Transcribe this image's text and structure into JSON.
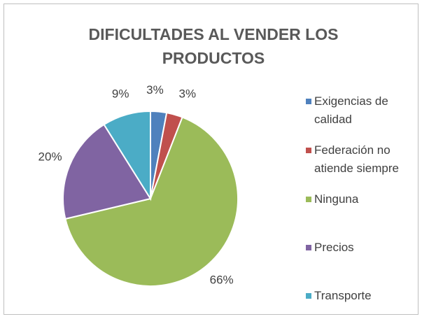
{
  "chart_data": {
    "type": "pie",
    "title": "DIFICULTADES AL VENDER LOS PRODUCTOS",
    "categories": [
      "Exigencias de calidad",
      "Federación no atiende siempre",
      "Ninguna",
      "Precios",
      "Transporte"
    ],
    "values": [
      3,
      3,
      66,
      20,
      9
    ],
    "value_labels": [
      "3%",
      "3%",
      "66%",
      "20%",
      "9%"
    ],
    "colors": [
      "#4f81bd",
      "#c0504d",
      "#9bbb59",
      "#8064a2",
      "#4bacc6"
    ],
    "legend": "right"
  }
}
